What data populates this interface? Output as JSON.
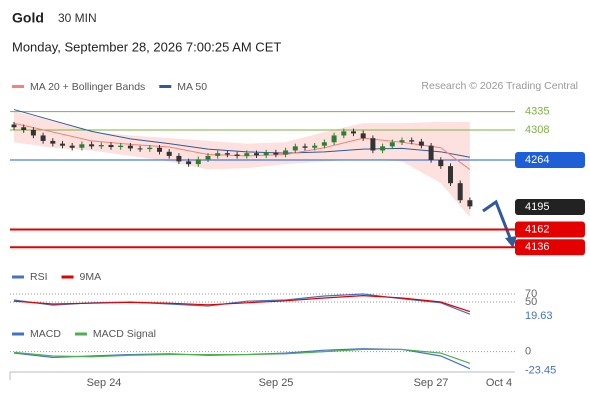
{
  "header": {
    "symbol": "Gold",
    "timeframe": "30 MIN",
    "datetime": "Monday, September 28, 2026 7:00:25 AM CET"
  },
  "chart_data": {
    "type": "candlestick",
    "legend": [
      {
        "name": "MA 20 + Bollinger Bands",
        "color": "#f4827a"
      },
      {
        "name": "MA 50",
        "color": "#2e5a9c"
      }
    ],
    "source": "Research © 2026 Trading Central",
    "ylim": [
      4110,
      4352
    ],
    "up_color": "#2e7d32",
    "down_color": "#333333",
    "open": [
      4316,
      4312,
      4308,
      4300,
      4292,
      4288,
      4285,
      4282,
      4287,
      4284,
      4286,
      4283,
      4285,
      4281,
      4280,
      4282,
      4276,
      4270,
      4262,
      4258,
      4265,
      4270,
      4274,
      4272,
      4270,
      4274,
      4271,
      4275,
      4272,
      4278,
      4284,
      4282,
      4285,
      4290,
      4300,
      4306,
      4303,
      4296,
      4278,
      4284,
      4290,
      4293,
      4291,
      4285,
      4264,
      4255,
      4230,
      4205
    ],
    "high": [
      4320,
      4316,
      4312,
      4304,
      4296,
      4292,
      4289,
      4291,
      4291,
      4290,
      4290,
      4289,
      4289,
      4285,
      4286,
      4286,
      4280,
      4274,
      4266,
      4269,
      4274,
      4278,
      4278,
      4276,
      4278,
      4278,
      4279,
      4279,
      4282,
      4288,
      4288,
      4289,
      4294,
      4304,
      4310,
      4310,
      4307,
      4300,
      4288,
      4294,
      4297,
      4297,
      4295,
      4289,
      4268,
      4259,
      4234,
      4209
    ],
    "low": [
      4308,
      4304,
      4296,
      4288,
      4284,
      4281,
      4278,
      4278,
      4280,
      4280,
      4279,
      4279,
      4277,
      4276,
      4276,
      4272,
      4266,
      4258,
      4254,
      4254,
      4261,
      4266,
      4268,
      4266,
      4266,
      4267,
      4267,
      4268,
      4268,
      4274,
      4278,
      4278,
      4281,
      4286,
      4296,
      4299,
      4292,
      4274,
      4274,
      4280,
      4286,
      4287,
      4281,
      4260,
      4251,
      4226,
      4201,
      4192
    ],
    "close": [
      4312,
      4308,
      4300,
      4292,
      4288,
      4285,
      4282,
      4287,
      4284,
      4286,
      4283,
      4285,
      4281,
      4280,
      4282,
      4276,
      4270,
      4262,
      4258,
      4265,
      4270,
      4274,
      4272,
      4270,
      4274,
      4271,
      4275,
      4272,
      4278,
      4284,
      4282,
      4285,
      4290,
      4300,
      4306,
      4303,
      4296,
      4278,
      4284,
      4290,
      4293,
      4291,
      4285,
      4264,
      4255,
      4230,
      4205,
      4196
    ],
    "indicator_x": [
      0,
      4,
      8,
      12,
      16,
      20,
      24,
      28,
      32,
      36,
      40,
      44,
      47
    ],
    "ma20": [
      4318,
      4305,
      4292,
      4287,
      4283,
      4272,
      4270,
      4272,
      4282,
      4296,
      4290,
      4282,
      4250
    ],
    "ma50": [
      4338,
      4322,
      4306,
      4295,
      4288,
      4280,
      4276,
      4274,
      4276,
      4280,
      4281,
      4276,
      4268
    ],
    "bb_upper": [
      4335,
      4322,
      4305,
      4300,
      4296,
      4292,
      4288,
      4290,
      4305,
      4318,
      4318,
      4320,
      4320
    ],
    "bb_lower": [
      4290,
      4282,
      4278,
      4270,
      4262,
      4250,
      4252,
      4258,
      4262,
      4265,
      4262,
      4230,
      4180
    ],
    "levels": [
      {
        "value": 4335,
        "color": "#7cb342",
        "line": true,
        "box": false
      },
      {
        "value": 4308,
        "color": "#7cb342",
        "line": true,
        "box": false
      },
      {
        "value": 4264,
        "color": "#1f5fd6",
        "line": true,
        "box": true
      },
      {
        "value": 4195,
        "color": "#222222",
        "line": false,
        "box": true
      },
      {
        "value": 4162,
        "color": "#e50000",
        "line": true,
        "box": true
      },
      {
        "value": 4136,
        "color": "#e50000",
        "line": true,
        "box": true
      }
    ],
    "x_labels": [
      "Sep 24",
      "Sep 25",
      "Sep 27",
      "Oct 4"
    ],
    "rsi": {
      "ylim": [
        10,
        80
      ],
      "yticks": [
        70,
        50
      ],
      "series": [
        {
          "name": "RSI",
          "color": "#4472c4",
          "values": [
            55,
            42,
            48,
            50,
            45,
            40,
            52,
            55,
            65,
            70,
            58,
            48,
            19.63
          ]
        },
        {
          "name": "9MA",
          "color": "#e00000",
          "values": [
            52,
            45,
            47,
            49,
            47,
            43,
            48,
            53,
            60,
            66,
            60,
            50,
            26
          ]
        }
      ]
    },
    "macd": {
      "ylim": [
        -28,
        16
      ],
      "yticks": [
        0
      ],
      "series": [
        {
          "name": "MACD",
          "color": "#4472c4",
          "values": [
            -2,
            -8,
            -6,
            -4,
            -3,
            -5,
            -4,
            -2,
            2,
            4,
            3,
            -6,
            -23.45
          ]
        },
        {
          "name": "MACD Signal",
          "color": "#4caf50",
          "values": [
            -1,
            -6,
            -7,
            -5,
            -4,
            -4,
            -4,
            -3,
            0,
            3,
            3,
            -2,
            -16
          ]
        }
      ]
    }
  }
}
